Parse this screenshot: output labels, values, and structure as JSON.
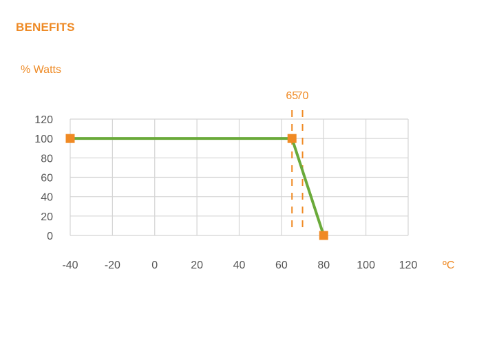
{
  "section": {
    "heading": "BENEFITS"
  },
  "chart_data": {
    "type": "line",
    "title": "",
    "ylabel": "% Watts",
    "xlabel": "ºC",
    "xlim": [
      -40,
      120
    ],
    "ylim": [
      0,
      120
    ],
    "x_ticks": [
      -40,
      -20,
      0,
      20,
      40,
      60,
      80,
      100,
      120
    ],
    "y_ticks": [
      0,
      20,
      40,
      60,
      80,
      100,
      120
    ],
    "grid": true,
    "series": [
      {
        "color": "#6aaa3a",
        "marker_color": "#f08a24",
        "x": [
          -40,
          65,
          80
        ],
        "y": [
          100,
          100,
          0
        ]
      }
    ],
    "reference_lines": [
      {
        "x": 65,
        "label": "65",
        "color": "#f08a24",
        "style": "dashed"
      },
      {
        "x": 70,
        "label": "70",
        "color": "#f08a24",
        "style": "dashed"
      }
    ]
  }
}
